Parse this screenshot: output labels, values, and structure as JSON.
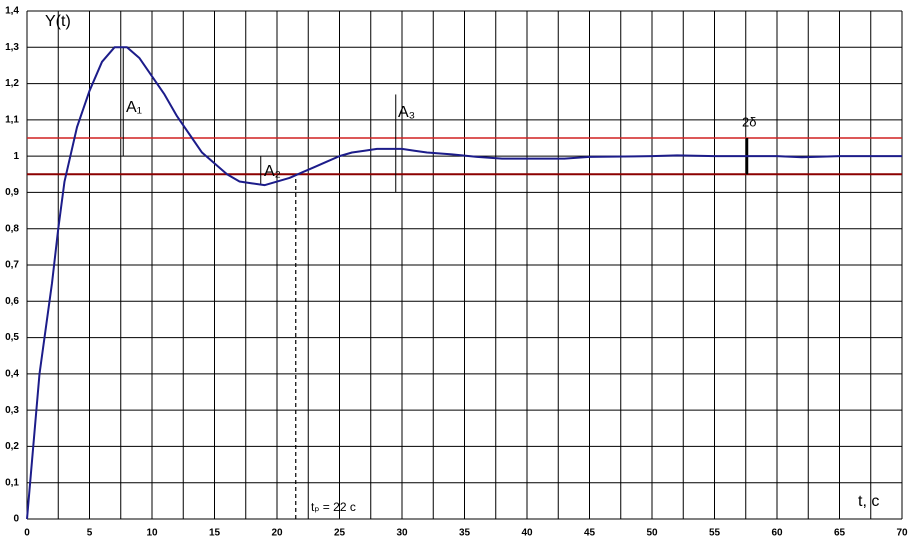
{
  "chart_data": {
    "type": "line",
    "y_axis_title": "Y(t)",
    "x_axis_title": "t, c",
    "x": [
      0,
      1,
      2,
      2.5,
      3,
      4,
      5,
      6,
      7,
      8,
      9,
      10,
      11,
      12,
      13,
      14,
      15,
      16,
      17,
      18,
      19,
      20,
      21,
      22,
      23,
      24,
      25,
      26,
      27,
      28,
      29,
      30,
      31,
      32,
      34,
      36,
      38,
      40,
      43,
      45,
      50,
      52,
      55,
      60,
      62,
      65,
      70
    ],
    "values": [
      0,
      0.4,
      0.65,
      0.8,
      0.93,
      1.08,
      1.18,
      1.26,
      1.3,
      1.3,
      1.27,
      1.22,
      1.17,
      1.11,
      1.06,
      1.01,
      0.98,
      0.95,
      0.93,
      0.925,
      0.92,
      0.93,
      0.94,
      0.955,
      0.97,
      0.985,
      1.0,
      1.01,
      1.015,
      1.02,
      1.02,
      1.02,
      1.015,
      1.01,
      1.005,
      0.998,
      0.993,
      0.993,
      0.993,
      0.998,
      1.0,
      1.002,
      1.0,
      1.0,
      0.997,
      1.0,
      1.0
    ],
    "color": "#1c1c8a",
    "xlim": [
      0,
      70
    ],
    "ylim": [
      0,
      1.4
    ],
    "xticks": [
      0,
      5,
      10,
      15,
      20,
      25,
      30,
      35,
      40,
      45,
      50,
      55,
      60,
      65,
      70
    ],
    "xminorticks": [
      2.5,
      7.5,
      12.5,
      17.5,
      22.5,
      27.5,
      32.5,
      37.5,
      42.5,
      47.5,
      52.5,
      57.5,
      62.5,
      67.5
    ],
    "yticks": [
      0,
      {
        "value": 0.1,
        "label": "0,1"
      },
      {
        "value": 0.2,
        "label": "0,2"
      },
      {
        "value": 0.3,
        "label": "0,3"
      },
      {
        "value": 0.4,
        "label": "0,4"
      },
      {
        "value": 0.5,
        "label": "0,5"
      },
      {
        "value": 0.6,
        "label": "0,6"
      },
      {
        "value": 0.7,
        "label": "0,7"
      },
      {
        "value": 0.8,
        "label": "0,8"
      },
      {
        "value": 0.9,
        "label": "0,9"
      },
      1,
      {
        "value": 1.1,
        "label": "1,1"
      },
      {
        "value": 1.2,
        "label": "1,2"
      },
      {
        "value": 1.3,
        "label": "1,3"
      },
      {
        "value": 1.4,
        "label": "1,4"
      }
    ],
    "grid": true,
    "reference_lines": [
      {
        "value": 1.05,
        "color": "#d02020"
      },
      {
        "value": 0.95,
        "color": "#8b0000"
      }
    ],
    "settling_line": 21.5,
    "annotations": [
      "A₁",
      "A₂",
      "A₃",
      "2δ",
      "tₚ = 22 c"
    ]
  }
}
